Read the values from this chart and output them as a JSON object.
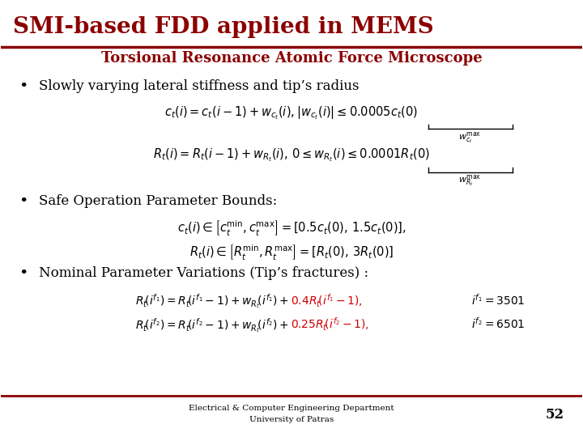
{
  "title_main": "SMI-based FDD applied in MEMS",
  "title_sub": "Torsional Resonance Atomic Force Microscope",
  "bullet1": "Slowly varying lateral stiffness and tip’s radius",
  "bullet2": "Safe Operation Parameter Bounds:",
  "bullet3": "Nominal Parameter Variations (Tip’s fractures) :",
  "footer1": "Electrical & Computer Engineering Department",
  "footer2": "University of Patras",
  "page_num": "52",
  "bg_color": "#ffffff",
  "title_color": "#8B0000",
  "sub_color": "#8B0000",
  "text_color": "#000000",
  "line_color": "#8B0000",
  "highlight_color": "#cc0000"
}
